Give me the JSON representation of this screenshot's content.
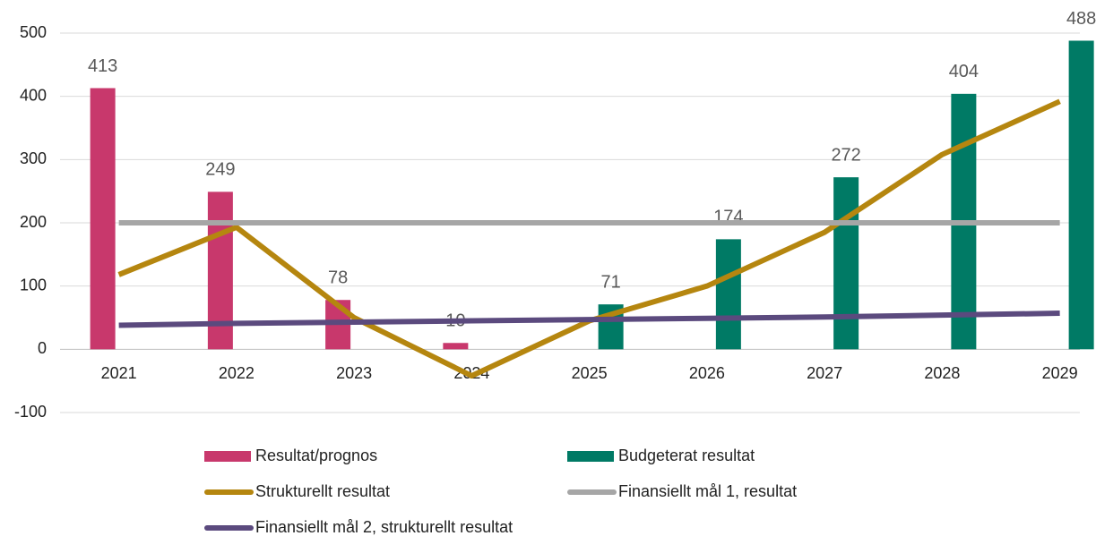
{
  "chart_data": {
    "type": "combo",
    "categories": [
      "2021",
      "2022",
      "2023",
      "2024",
      "2025",
      "2026",
      "2027",
      "2028",
      "2029"
    ],
    "series": [
      {
        "name": "Resultat/prognos",
        "type": "bar",
        "color": "#c8386c",
        "values": [
          413,
          249,
          78,
          10,
          null,
          null,
          null,
          null,
          null
        ]
      },
      {
        "name": "Budgeterat resultat",
        "type": "bar",
        "color": "#007a65",
        "values": [
          null,
          null,
          null,
          null,
          71,
          174,
          272,
          404,
          488
        ]
      },
      {
        "name": "Strukturellt resultat",
        "type": "line",
        "color": "#b5860f",
        "values": [
          118,
          193,
          50,
          -42,
          45,
          100,
          185,
          308,
          392
        ]
      },
      {
        "name": "Finansiellt mål 1, resultat",
        "type": "line",
        "color": "#a6a6a6",
        "values": [
          200,
          200,
          200,
          200,
          200,
          200,
          200,
          200,
          200
        ]
      },
      {
        "name": "Finansiellt mål 2, strukturellt resultat",
        "type": "line",
        "color": "#5b4a7e",
        "values": [
          38,
          41,
          43,
          45,
          47,
          49,
          51,
          54,
          57
        ]
      }
    ],
    "ylim": [
      -100,
      500
    ],
    "yticks": [
      -100,
      0,
      100,
      200,
      300,
      400,
      500
    ],
    "grid": true,
    "legend": "bottom"
  }
}
